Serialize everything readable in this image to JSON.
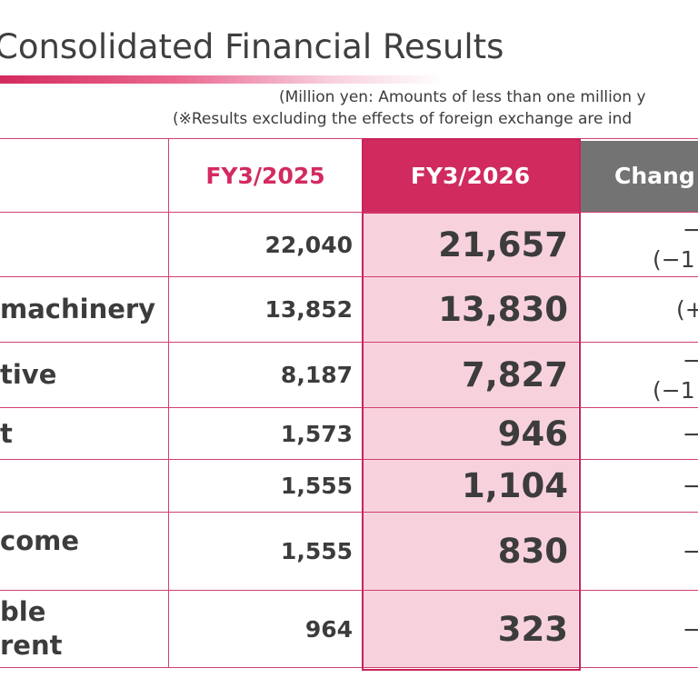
{
  "page": {
    "title": "Consolidated Financial Results",
    "notes": [
      "(Million yen: Amounts of less than one million y",
      "(※Results excluding the effects of foreign exchange are ind"
    ]
  },
  "table": {
    "headers": {
      "label": "",
      "fy2025": "FY3/2025",
      "fy2026": "FY3/2026",
      "change": "Chang"
    },
    "rows": [
      {
        "label_lines": [
          "",
          ""
        ],
        "fy2025": "22,040",
        "fy2026": "21,657",
        "change_lines": [
          "−",
          "(−1"
        ]
      },
      {
        "label_lines": [
          "machinery",
          ""
        ],
        "fy2025": "13,852",
        "fy2026": "13,830",
        "change_lines": [
          "",
          "(+"
        ]
      },
      {
        "label_lines": [
          "tive",
          ""
        ],
        "fy2025": "8,187",
        "fy2026": "7,827",
        "change_lines": [
          "−",
          "(−1"
        ]
      },
      {
        "label_lines": [
          "t",
          ""
        ],
        "fy2025": "1,573",
        "fy2026": "946",
        "change_lines": [
          "−",
          ""
        ]
      },
      {
        "label_lines": [
          "",
          ""
        ],
        "fy2025": "1,555",
        "fy2026": "1,104",
        "change_lines": [
          "−",
          ""
        ]
      },
      {
        "label_lines": [
          "come",
          ""
        ],
        "fy2025": "1,555",
        "fy2026": "830",
        "change_lines": [
          "−",
          ""
        ]
      },
      {
        "label_lines": [
          "ble",
          "rent"
        ],
        "fy2025": "964",
        "fy2026": "323",
        "change_lines": [
          "−",
          ""
        ]
      }
    ]
  },
  "colors": {
    "accent": "#d02a5e",
    "highlight_column": "#f7d2dd",
    "change_header": "#737373",
    "grid_line": "#d04070"
  }
}
